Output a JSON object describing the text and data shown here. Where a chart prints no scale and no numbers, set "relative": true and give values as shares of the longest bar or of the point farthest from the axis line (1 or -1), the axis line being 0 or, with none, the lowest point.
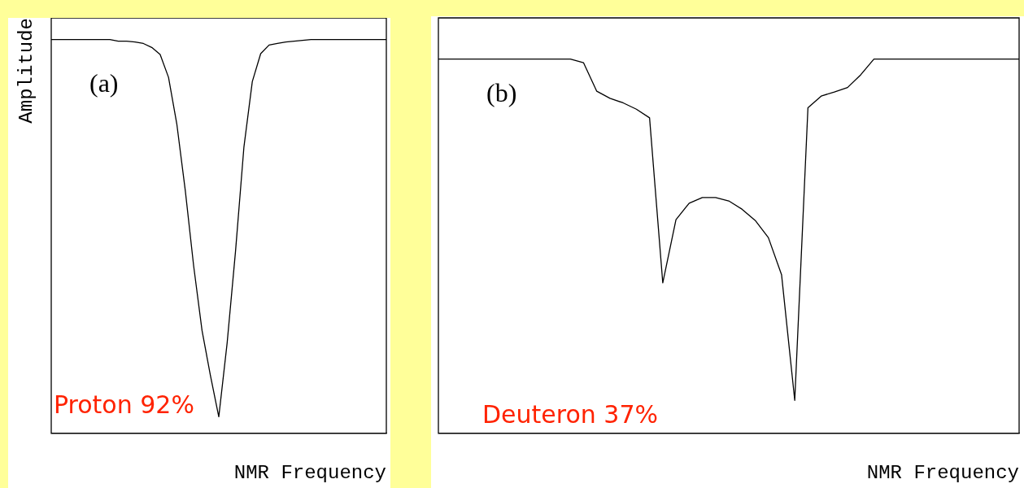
{
  "chart_data": [
    {
      "type": "line",
      "relative": true,
      "ylabel": "Amplitude",
      "xlabel": "NMR Frequency",
      "color": "#000000",
      "marker": "none",
      "grid": false,
      "legend": false,
      "annotations": [
        "(a)",
        "Proton 92%"
      ],
      "categories": [
        null,
        null,
        null,
        null,
        null,
        null,
        null,
        null,
        null,
        null,
        null,
        null,
        null,
        null,
        null,
        null,
        null,
        null,
        null,
        null,
        null,
        null,
        null,
        null,
        null,
        null,
        null,
        null,
        null,
        null,
        null,
        null,
        null,
        null,
        null,
        null,
        null,
        null,
        null,
        null,
        null
      ],
      "values": [
        1,
        1,
        1,
        1,
        1,
        1,
        1,
        1,
        0.996,
        0.996,
        0.994,
        0.99,
        0.98,
        0.962,
        0.904,
        0.784,
        0.617,
        0.425,
        0.261,
        0.147,
        0.042,
        0.23,
        0.463,
        0.727,
        0.893,
        0.964,
        0.986,
        0.99,
        0.994,
        0.996,
        0.998,
        1,
        1,
        1,
        1,
        1,
        1,
        1,
        1,
        1,
        1
      ]
    },
    {
      "type": "line",
      "relative": true,
      "xlabel": "NMR Frequency",
      "color": "#000000",
      "marker": "none",
      "grid": false,
      "legend": false,
      "annotations": [
        "(b)",
        "Deuteron 37%"
      ],
      "categories": [
        null,
        null,
        null,
        null,
        null,
        null,
        null,
        null,
        null,
        null,
        null,
        null,
        null,
        null,
        null,
        null,
        null,
        null,
        null,
        null,
        null,
        null,
        null,
        null,
        null,
        null,
        null,
        null,
        null,
        null,
        null,
        null,
        null,
        null,
        null,
        null,
        null,
        null,
        null,
        null,
        null,
        null,
        null,
        null,
        null
      ],
      "values": [
        1,
        1,
        1,
        1,
        1,
        1,
        1,
        1,
        1,
        1,
        1,
        0.99,
        0.914,
        0.895,
        0.883,
        0.866,
        0.843,
        0.402,
        0.571,
        0.615,
        0.63,
        0.63,
        0.621,
        0.599,
        0.569,
        0.523,
        0.424,
        0.088,
        0.87,
        0.901,
        0.912,
        0.924,
        0.958,
        1,
        1,
        1,
        1,
        1,
        1,
        1,
        1,
        1,
        1,
        1,
        1
      ]
    }
  ]
}
